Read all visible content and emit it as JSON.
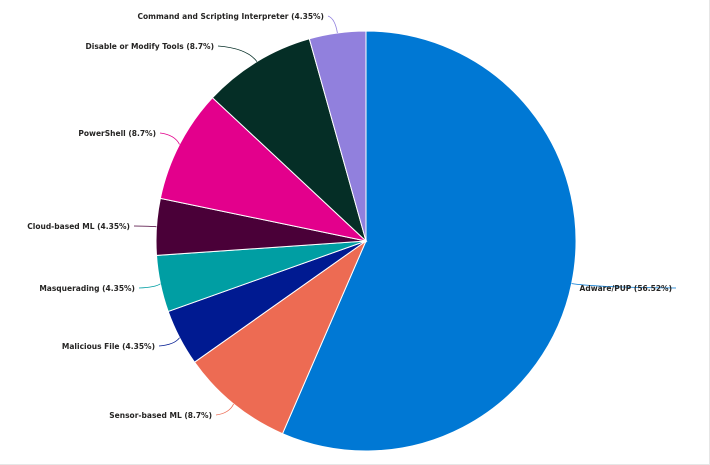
{
  "chart_data": {
    "type": "pie",
    "title": "",
    "start_angle_deg": 0,
    "direction": "clockwise",
    "slices": [
      {
        "label": "Adware/PUP",
        "value": 56.52,
        "display": "Adware/PUP (56.52%)",
        "color": "#0078d4"
      },
      {
        "label": "Sensor-based ML",
        "value": 8.7,
        "display": "Sensor-based ML (8.7%)",
        "color": "#ed6b53"
      },
      {
        "label": "Malicious File",
        "value": 4.35,
        "display": "Malicious File (4.35%)",
        "color": "#001a91"
      },
      {
        "label": "Masquerading",
        "value": 4.35,
        "display": "Masquerading (4.35%)",
        "color": "#009ea3"
      },
      {
        "label": "Cloud-based ML",
        "value": 4.35,
        "display": "Cloud-based ML (4.35%)",
        "color": "#4a0038"
      },
      {
        "label": "PowerShell",
        "value": 8.7,
        "display": "PowerShell (8.7%)",
        "color": "#e3008c"
      },
      {
        "label": "Disable or Modify Tools",
        "value": 8.7,
        "display": "Disable or Modify Tools (8.7%)",
        "color": "#052e26"
      },
      {
        "label": "Command and Scripting Interpreter",
        "value": 4.35,
        "display": "Command and Scripting Interpreter (4.35%)",
        "color": "#9180dd"
      }
    ]
  }
}
